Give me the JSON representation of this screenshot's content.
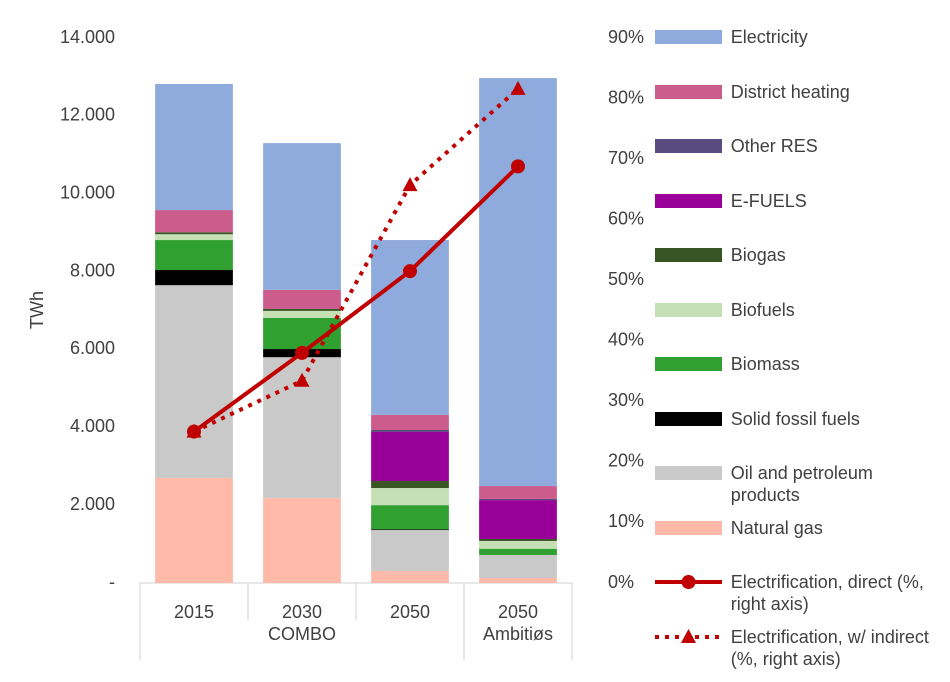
{
  "chart_data": {
    "type": "bar",
    "stacked": true,
    "ylabel": "TWh",
    "groups": [
      {
        "name": "COMBO",
        "categories": [
          "2015",
          "2030",
          "2050"
        ]
      },
      {
        "name": "Ambitiøs",
        "categories": [
          "2050"
        ]
      }
    ],
    "ylim": [
      0,
      14000
    ],
    "yticks": [
      {
        "value": 0,
        "label": "-"
      },
      {
        "value": 2000,
        "label": "2.000"
      },
      {
        "value": 4000,
        "label": "4.000"
      },
      {
        "value": 6000,
        "label": "6.000"
      },
      {
        "value": 8000,
        "label": "8.000"
      },
      {
        "value": 10000,
        "label": "10.000"
      },
      {
        "value": 12000,
        "label": "12.000"
      },
      {
        "value": 14000,
        "label": "14.000"
      }
    ],
    "y2lim": [
      0,
      90
    ],
    "y2ticks": [
      {
        "value": 0,
        "label": "0%"
      },
      {
        "value": 10,
        "label": "10%"
      },
      {
        "value": 20,
        "label": "20%"
      },
      {
        "value": 30,
        "label": "30%"
      },
      {
        "value": 40,
        "label": "40%"
      },
      {
        "value": 50,
        "label": "50%"
      },
      {
        "value": 60,
        "label": "60%"
      },
      {
        "value": 70,
        "label": "70%"
      },
      {
        "value": 80,
        "label": "80%"
      },
      {
        "value": 90,
        "label": "90%"
      }
    ],
    "series": [
      {
        "name": "Natural gas",
        "color": "#ffb9a8",
        "values": [
          2700,
          2180,
          310,
          130
        ]
      },
      {
        "name": "Oil and petroleum products",
        "color": "#c9c9c9",
        "values": [
          4950,
          3620,
          1050,
          590
        ]
      },
      {
        "name": "Solid fossil fuels",
        "color": "#000000",
        "values": [
          390,
          210,
          20,
          0
        ]
      },
      {
        "name": "Biomass",
        "color": "#30a030",
        "values": [
          770,
          800,
          620,
          160
        ]
      },
      {
        "name": "Biofuels",
        "color": "#c5e0b4",
        "values": [
          150,
          180,
          440,
          200
        ]
      },
      {
        "name": "Biogas",
        "color": "#375623",
        "values": [
          50,
          50,
          180,
          50
        ]
      },
      {
        "name": "E-FUELS",
        "color": "#990099",
        "values": [
          0,
          0,
          1260,
          1000
        ]
      },
      {
        "name": "Other RES",
        "color": "#5b4a80",
        "values": [
          0,
          0,
          50,
          30
        ]
      },
      {
        "name": "District heating",
        "color": "#cc5c8c",
        "values": [
          570,
          490,
          390,
          330
        ]
      },
      {
        "name": "Electricity",
        "color": "#8faadc",
        "values": [
          3240,
          3770,
          4490,
          10480
        ]
      },
      {
        "name": "Electrification, direct (%, right axis)",
        "color": "#c00000",
        "type": "line",
        "marker": "circle",
        "axis": "y2",
        "values": [
          25,
          38,
          51.5,
          68.8
        ]
      },
      {
        "name": "Electrification, w/ indirect (%, right axis)",
        "color": "#c00000",
        "type": "line",
        "marker": "triangle",
        "dashed": true,
        "axis": "y2",
        "values": [
          25,
          33.4,
          65.7,
          81.6
        ]
      }
    ]
  }
}
